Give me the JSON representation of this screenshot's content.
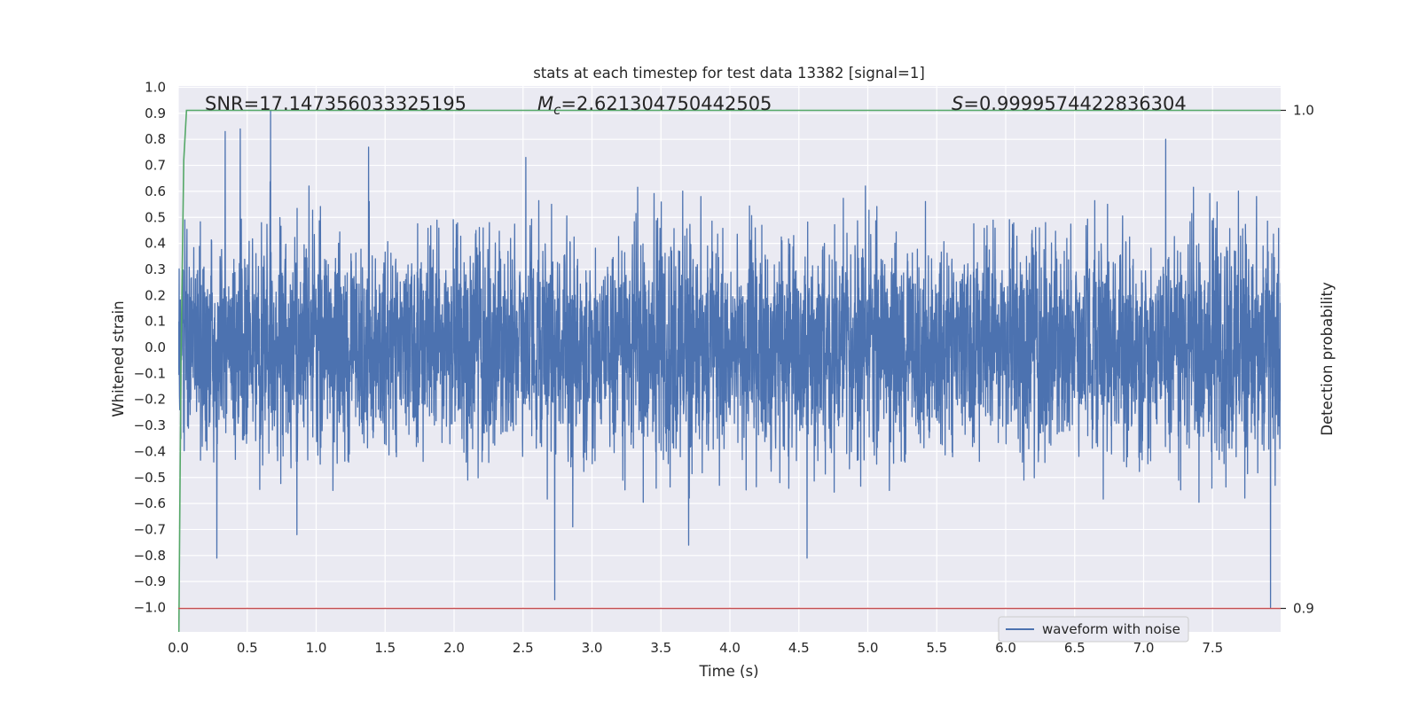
{
  "chart_data": {
    "type": "line",
    "title": "stats at each timestep for test data 13382 [signal=1]",
    "xlabel": "Time (s)",
    "ylabel": "Whitened strain",
    "ylabel_right": "Detection probability",
    "xlim": [
      0.0,
      8.0
    ],
    "ylim": [
      -1.1,
      1.0
    ],
    "ylim_right": [
      0.88,
      1.0
    ],
    "x_ticks": [
      "0.0",
      "0.5",
      "1.0",
      "1.5",
      "2.0",
      "2.5",
      "3.0",
      "3.5",
      "4.0",
      "4.5",
      "5.0",
      "5.5",
      "6.0",
      "6.5",
      "7.0",
      "7.5"
    ],
    "y_ticks": [
      "1.0",
      "0.9",
      "0.8",
      "0.7",
      "0.6",
      "0.5",
      "0.4",
      "0.3",
      "0.2",
      "0.1",
      "0.0",
      "−0.1",
      "−0.2",
      "−0.3",
      "−0.4",
      "−0.5",
      "−0.6",
      "−0.7",
      "−0.8",
      "−0.9",
      "−1.0"
    ],
    "y_ticks_right": [
      "1.0",
      "0.9"
    ],
    "grid": true,
    "legend_position": "lower-right",
    "annotations": {
      "snr": "SNR=17.147356033325195",
      "mc_symbol": "M",
      "mc_sub": "c",
      "mc_value": "=2.621304750442505",
      "s_symbol": "S",
      "s_value": "=0.9999574422836304"
    },
    "series": [
      {
        "name": "waveform with noise",
        "axis": "left",
        "color": "#4c72b0",
        "x_range": [
          0.0,
          8.0
        ],
        "amplitude_typical": 0.5,
        "spikes": [
          {
            "x": 0.28,
            "y": -0.81
          },
          {
            "x": 0.34,
            "y": 0.83
          },
          {
            "x": 0.45,
            "y": 0.84
          },
          {
            "x": 0.67,
            "y": 0.91
          },
          {
            "x": 0.86,
            "y": -0.72
          },
          {
            "x": 1.38,
            "y": 0.77
          },
          {
            "x": 2.52,
            "y": 0.73
          },
          {
            "x": 2.73,
            "y": -0.97
          },
          {
            "x": 2.86,
            "y": -0.69
          },
          {
            "x": 3.7,
            "y": -0.76
          },
          {
            "x": 4.56,
            "y": -0.81
          },
          {
            "x": 7.16,
            "y": 0.8
          },
          {
            "x": 7.92,
            "y": -1.0
          }
        ]
      },
      {
        "name": "",
        "axis": "right",
        "color": "#55a868",
        "x": [
          0.0,
          0.02,
          0.04,
          0.06,
          8.0
        ],
        "y": [
          0.88,
          0.95,
          0.99,
          1.0,
          1.0
        ]
      },
      {
        "name": "",
        "axis": "right",
        "color": "#c44e52",
        "x": [
          0.0,
          8.0
        ],
        "y": [
          0.9,
          0.9
        ]
      }
    ]
  }
}
